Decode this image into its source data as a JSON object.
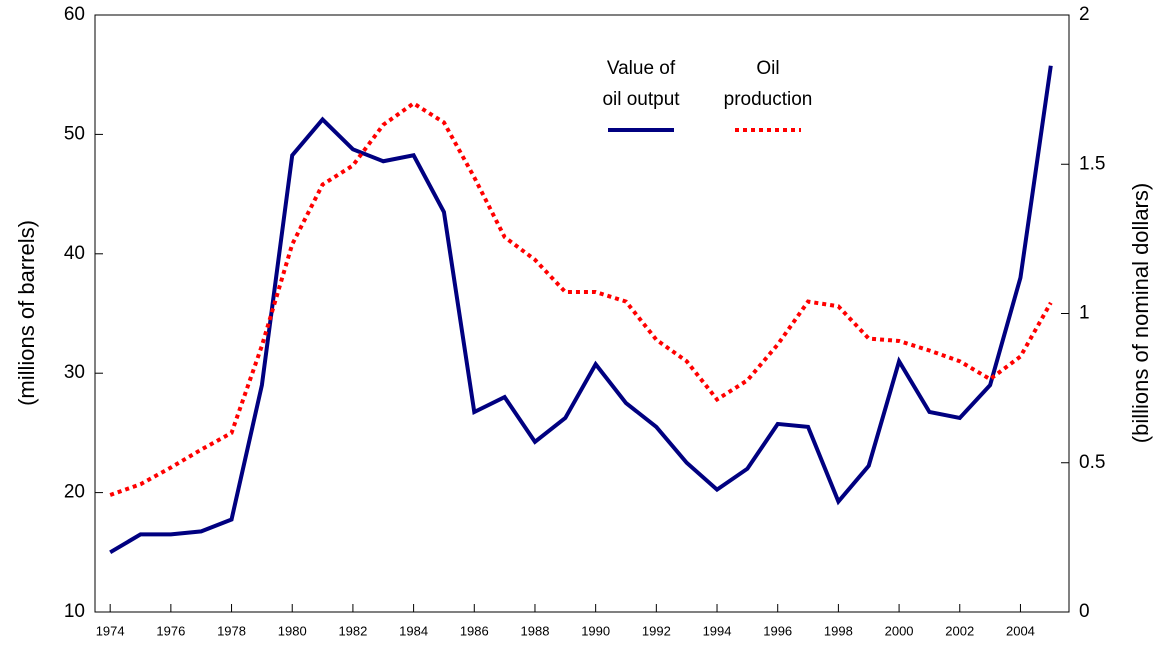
{
  "chart_data": {
    "type": "line",
    "x": [
      1974,
      1975,
      1976,
      1977,
      1978,
      1979,
      1980,
      1981,
      1982,
      1983,
      1984,
      1985,
      1986,
      1987,
      1988,
      1989,
      1990,
      1991,
      1992,
      1993,
      1994,
      1995,
      1996,
      1997,
      1998,
      1999,
      2000,
      2001,
      2002,
      2003,
      2004,
      2005
    ],
    "xlim": [
      1973.5,
      2005.6
    ],
    "xticks": [
      1974,
      1976,
      1978,
      1980,
      1982,
      1984,
      1986,
      1988,
      1990,
      1992,
      1994,
      1996,
      1998,
      2000,
      2002,
      2004
    ],
    "ylabel": "(millions of barrels)",
    "y2label": "(billions of nominal dollars)",
    "ylim": [
      10,
      60
    ],
    "yticks": [
      10,
      20,
      30,
      40,
      50,
      60
    ],
    "y2lim": [
      0,
      2
    ],
    "y2ticks": [
      0,
      0.5,
      1,
      1.5,
      2
    ],
    "series": [
      {
        "name": [
          "Value of",
          "oil output"
        ],
        "color": "#000080",
        "style": "solid",
        "axis": "y2",
        "values": [
          0.2,
          0.26,
          0.26,
          0.27,
          0.31,
          0.76,
          1.53,
          1.65,
          1.55,
          1.51,
          1.53,
          1.34,
          0.67,
          0.72,
          0.57,
          0.65,
          0.83,
          0.7,
          0.62,
          0.5,
          0.41,
          0.48,
          0.63,
          0.62,
          0.37,
          0.49,
          0.84,
          0.67,
          0.65,
          0.76,
          1.12,
          1.83
        ]
      },
      {
        "name": [
          "Oil",
          "production"
        ],
        "color": "#ff0000",
        "style": "dotted",
        "axis": "y",
        "values": [
          19.8,
          20.7,
          22.1,
          23.6,
          25.0,
          32.3,
          40.8,
          45.8,
          47.4,
          50.8,
          52.6,
          51.0,
          46.4,
          41.4,
          39.5,
          36.8,
          36.8,
          36.0,
          32.8,
          31.0,
          27.8,
          29.4,
          32.4,
          36.0,
          35.6,
          32.9,
          32.7,
          31.9,
          31.0,
          29.5,
          31.4,
          35.9
        ]
      }
    ]
  }
}
